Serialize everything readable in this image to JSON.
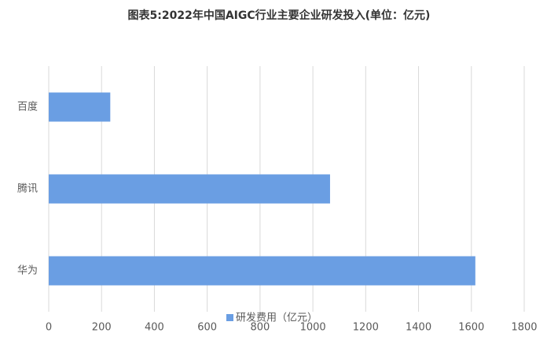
{
  "chart_data": {
    "type": "bar",
    "orientation": "horizontal",
    "title": "图表5:2022年中国AIGC行业主要企业研发投入(单位：亿元)",
    "categories": [
      "百度",
      "腾讯",
      "华为"
    ],
    "series": [
      {
        "name": "研发费用（亿元）",
        "color": "#6a9ee3",
        "values": [
          233,
          1065,
          1615
        ]
      }
    ],
    "xlim": [
      0,
      1800
    ],
    "xticks": [
      0,
      200,
      400,
      600,
      800,
      1000,
      1200,
      1400,
      1600,
      1800
    ],
    "grid": true,
    "legend": "bottom"
  }
}
